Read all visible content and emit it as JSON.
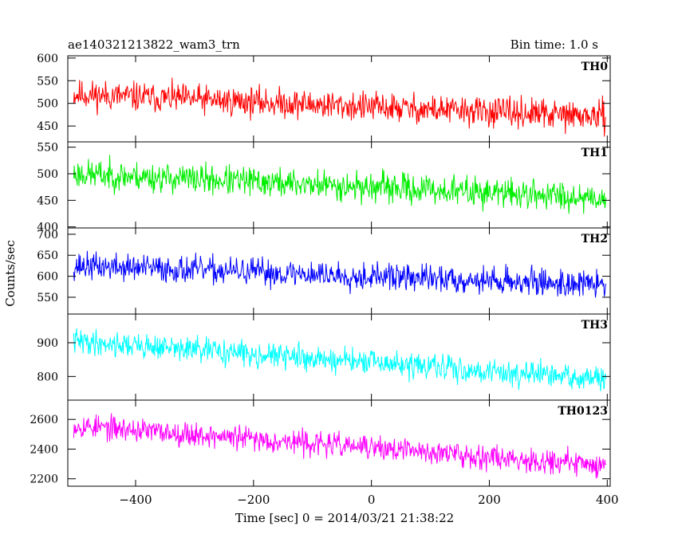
{
  "chart_data": {
    "type": "line",
    "title": "ae140321213822_wam3_trn",
    "bin_time_label": "Bin time: 1.0 s",
    "xlabel": "Time [sec] 0 = 2014/03/21 21:38:22",
    "ylabel": "Counts/sec",
    "xlim": [
      -515,
      405
    ],
    "x_ticks": [
      -400,
      -200,
      0,
      200,
      400
    ],
    "x_range": [
      -505,
      398
    ],
    "panels": [
      {
        "name": "TH0",
        "color": "#ff0000",
        "ylim": [
          415,
          605
        ],
        "y_ticks": [
          450,
          500,
          550,
          600
        ],
        "start": 520,
        "end": 470,
        "noise": 28,
        "seed": 11
      },
      {
        "name": "TH1",
        "color": "#00ee00",
        "ylim": [
          398,
          560
        ],
        "y_ticks": [
          400,
          450,
          500,
          550
        ],
        "start": 500,
        "end": 455,
        "noise": 24,
        "seed": 23
      },
      {
        "name": "TH2",
        "color": "#0000ff",
        "ylim": [
          510,
          715
        ],
        "y_ticks": [
          550,
          600,
          650,
          700
        ],
        "start": 625,
        "end": 580,
        "noise": 28,
        "seed": 37
      },
      {
        "name": "TH3",
        "color": "#00ffff",
        "ylim": [
          730,
          985
        ],
        "y_ticks": [
          800,
          900
        ],
        "start": 905,
        "end": 790,
        "noise": 32,
        "seed": 41
      },
      {
        "name": "TH0123",
        "color": "#ff00ff",
        "ylim": [
          2150,
          2730
        ],
        "y_ticks": [
          2200,
          2400,
          2600
        ],
        "start": 2560,
        "end": 2290,
        "noise": 70,
        "seed": 53
      }
    ]
  }
}
